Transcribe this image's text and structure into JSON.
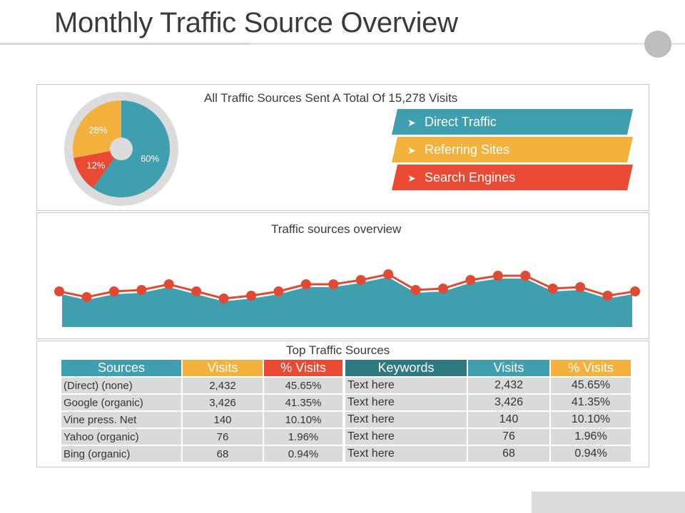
{
  "slide": {
    "title": "Monthly Traffic Source Overview"
  },
  "top_panel": {
    "heading": "All Traffic Sources Sent A Total Of 15,278 Visits",
    "legend": [
      {
        "label": "Direct Traffic",
        "color": "#3f9fae",
        "icon": "arrow-right-icon"
      },
      {
        "label": "Referring Sites",
        "color": "#f3b23e",
        "icon": "arrow-right-icon"
      },
      {
        "label": "Search Engines",
        "color": "#ea4a33",
        "icon": "arrow-right-icon"
      }
    ]
  },
  "mid_panel": {
    "heading": "Traffic sources overview"
  },
  "bot_panel": {
    "heading": "Top Traffic Sources",
    "sources_table": {
      "headers": [
        "Sources",
        "Visits",
        "% Visits"
      ],
      "header_colors": [
        "#3f9fae",
        "#f3b23e",
        "#ea4a33"
      ],
      "rows": [
        [
          "(Direct) (none)",
          "2,432",
          "45.65%"
        ],
        [
          "Google (organic)",
          "3,426",
          "41.35%"
        ],
        [
          "Vine press. Net",
          "140",
          "10.10%"
        ],
        [
          "Yahoo (organic)",
          "76",
          "1.96%"
        ],
        [
          "Bing (organic)",
          "68",
          "0.94%"
        ]
      ]
    },
    "keywords_table": {
      "headers": [
        "Keywords",
        "Visits",
        "% Visits"
      ],
      "header_colors": [
        "#2f7a80",
        "#3f9fae",
        "#f3b23e"
      ],
      "rows": [
        [
          "Text here",
          "2,432",
          "45.65%"
        ],
        [
          "Text here",
          "3,426",
          "41.35%"
        ],
        [
          "Text here",
          "140",
          "10.10%"
        ],
        [
          "Text here",
          "76",
          "1.96%"
        ],
        [
          "Text here",
          "68",
          "0.94%"
        ]
      ]
    }
  },
  "chart_data": [
    {
      "type": "pie",
      "title": "",
      "slices": [
        {
          "name": "Direct Traffic",
          "label": "60%",
          "value": 60,
          "color": "#3f9fae"
        },
        {
          "name": "Search Engines",
          "label": "12%",
          "value": 12,
          "color": "#ea4a33"
        },
        {
          "name": "Referring Sites",
          "label": "28%",
          "value": 28,
          "color": "#f3b23e"
        }
      ]
    },
    {
      "type": "area",
      "title": "Traffic sources overview",
      "xlabel": "",
      "ylabel": "",
      "ylim": [
        0,
        100
      ],
      "grid": false,
      "fill_color": "#3f9fae",
      "line_color": "#e04a33",
      "values": [
        45,
        41,
        45,
        46,
        50,
        45,
        40,
        42,
        45,
        50,
        50,
        53,
        57,
        46,
        47,
        53,
        56,
        56,
        47,
        48,
        42,
        45
      ]
    }
  ]
}
